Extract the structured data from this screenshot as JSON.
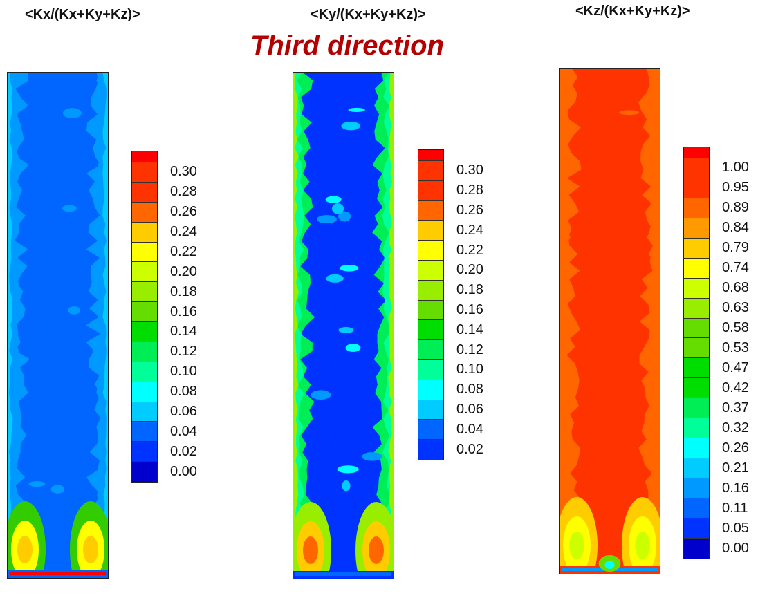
{
  "title": "Third direction",
  "chart_data": [
    {
      "type": "heatmap",
      "title": "<Kx/(Kx+Ky+Kz)>",
      "colorbar_ticks": [
        "0.30",
        "0.28",
        "0.26",
        "0.24",
        "0.22",
        "0.20",
        "0.18",
        "0.16",
        "0.14",
        "0.12",
        "0.10",
        "0.08",
        "0.06",
        "0.04",
        "0.02",
        "0.00"
      ],
      "range": [
        0.0,
        0.3
      ],
      "field_summary": {
        "core": 0.03,
        "near_wall": 0.05,
        "bottom_plumes": 0.24,
        "bottom_edge": 0.3
      }
    },
    {
      "type": "heatmap",
      "title": "<Ky/(Kx+Ky+Kz)>",
      "colorbar_ticks": [
        "0.30",
        "0.28",
        "0.26",
        "0.24",
        "0.22",
        "0.20",
        "0.18",
        "0.16",
        "0.14",
        "0.12",
        "0.10",
        "0.08",
        "0.06",
        "0.04",
        "0.02"
      ],
      "range": [
        0.0,
        0.3
      ],
      "field_summary": {
        "core": 0.01,
        "near_wall": 0.12,
        "bottom_plumes": 0.26,
        "bottom_edge": 0.03
      }
    },
    {
      "type": "heatmap",
      "title": "<Kz/(Kx+Ky+Kz)>",
      "colorbar_ticks": [
        "1.00",
        "0.95",
        "0.89",
        "0.84",
        "0.79",
        "0.74",
        "0.68",
        "0.63",
        "0.58",
        "0.53",
        "0.47",
        "0.42",
        "0.37",
        "0.32",
        "0.26",
        "0.21",
        "0.16",
        "0.11",
        "0.05",
        "0.00"
      ],
      "range": [
        0.0,
        1.0
      ],
      "field_summary": {
        "core": 0.97,
        "near_wall": 0.9,
        "bottom_plumes": 0.68,
        "bottom_edge": 0.15
      }
    }
  ],
  "palette": [
    "#0000cc",
    "#0033ff",
    "#0066ff",
    "#0099ff",
    "#00ccff",
    "#00ffff",
    "#00ff99",
    "#00ee55",
    "#00dd00",
    "#33cc00",
    "#66dd00",
    "#99ee00",
    "#ccff00",
    "#ffff00",
    "#ffcc00",
    "#ff9900",
    "#ff6600",
    "#ff3300",
    "#ff0000"
  ]
}
